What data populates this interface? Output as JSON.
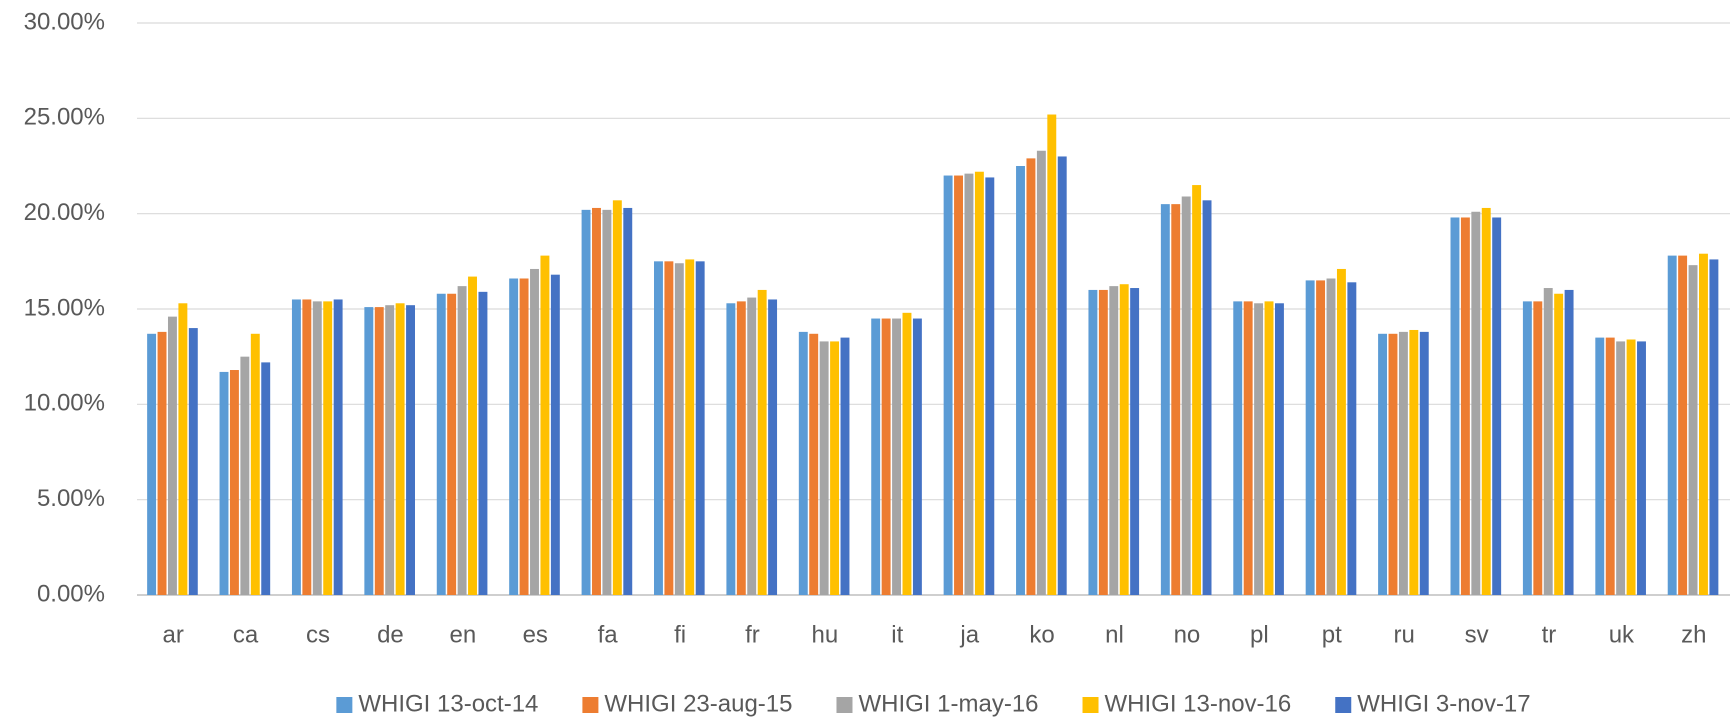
{
  "chart_data": {
    "type": "bar",
    "categories": [
      "ar",
      "ca",
      "cs",
      "de",
      "en",
      "es",
      "fa",
      "fi",
      "fr",
      "hu",
      "it",
      "ja",
      "ko",
      "nl",
      "no",
      "pl",
      "pt",
      "ru",
      "sv",
      "tr",
      "uk",
      "zh"
    ],
    "series": [
      {
        "name": "WHIGI 13-oct-14",
        "color": "#5b9bd5",
        "values": [
          13.7,
          11.7,
          15.5,
          15.1,
          15.8,
          16.6,
          20.2,
          17.5,
          15.3,
          13.8,
          14.5,
          22.0,
          22.5,
          16.0,
          20.5,
          15.4,
          16.5,
          13.7,
          19.8,
          15.4,
          13.5,
          17.8
        ]
      },
      {
        "name": "WHIGI 23-aug-15",
        "color": "#ed7d31",
        "values": [
          13.8,
          11.8,
          15.5,
          15.1,
          15.8,
          16.6,
          20.3,
          17.5,
          15.4,
          13.7,
          14.5,
          22.0,
          22.9,
          16.0,
          20.5,
          15.4,
          16.5,
          13.7,
          19.8,
          15.4,
          13.5,
          17.8
        ]
      },
      {
        "name": "WHIGI 1-may-16",
        "color": "#a5a5a5",
        "values": [
          14.6,
          12.5,
          15.4,
          15.2,
          16.2,
          17.1,
          20.2,
          17.4,
          15.6,
          13.3,
          14.5,
          22.1,
          23.3,
          16.2,
          20.9,
          15.3,
          16.6,
          13.8,
          20.1,
          16.1,
          13.3,
          17.3
        ]
      },
      {
        "name": "WHIGI 13-nov-16",
        "color": "#ffc000",
        "values": [
          15.3,
          13.7,
          15.4,
          15.3,
          16.7,
          17.8,
          20.7,
          17.6,
          16.0,
          13.3,
          14.8,
          22.2,
          25.2,
          16.3,
          21.5,
          15.4,
          17.1,
          13.9,
          20.3,
          15.8,
          13.4,
          17.9
        ]
      },
      {
        "name": "WHIGI 3-nov-17",
        "color": "#4472c4",
        "values": [
          14.0,
          12.2,
          15.5,
          15.2,
          15.9,
          16.8,
          20.3,
          17.5,
          15.5,
          13.5,
          14.5,
          21.9,
          23.0,
          16.1,
          20.7,
          15.3,
          16.4,
          13.8,
          19.8,
          16.0,
          13.3,
          17.6
        ]
      }
    ],
    "ylim": [
      0,
      30
    ],
    "yticks": [
      {
        "value": 0,
        "label": "0.00%"
      },
      {
        "value": 5,
        "label": "5.00%"
      },
      {
        "value": 10,
        "label": "10.00%"
      },
      {
        "value": 15,
        "label": "15.00%"
      },
      {
        "value": 20,
        "label": "20.00%"
      },
      {
        "value": 25,
        "label": "25.00%"
      },
      {
        "value": 30,
        "label": "30.00%"
      }
    ],
    "grid": true,
    "legend": "bottom"
  }
}
